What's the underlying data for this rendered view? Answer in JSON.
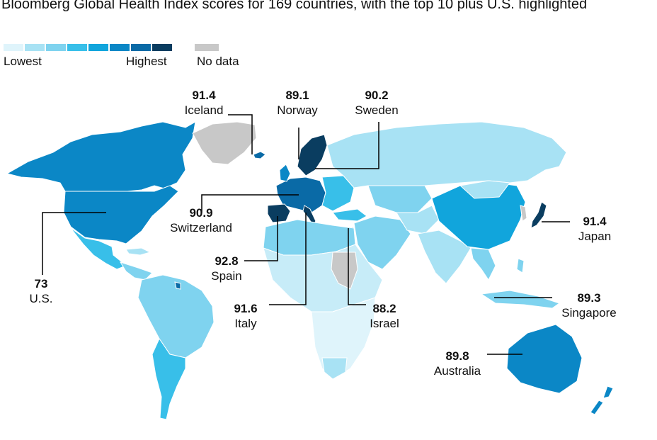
{
  "title": "Bloomberg Global Health Index scores for 169 countries, with the top 10 plus U.S. highlighted",
  "legend": {
    "colors": [
      "#dff4fb",
      "#c7ecf8",
      "#a8e2f4",
      "#7fd3ef",
      "#38bfe9",
      "#11a5dc",
      "#0b87c6",
      "#0a6aa6",
      "#0a3d60"
    ],
    "lowest_label": "Lowest",
    "highest_label": "Highest",
    "nodata_label": "No data",
    "nodata_color": "#c8c8c8"
  },
  "callouts": [
    {
      "id": "iceland",
      "value": "91.4",
      "name": "Iceland"
    },
    {
      "id": "norway",
      "value": "89.1",
      "name": "Norway"
    },
    {
      "id": "sweden",
      "value": "90.2",
      "name": "Sweden"
    },
    {
      "id": "switzerland",
      "value": "90.9",
      "name": "Switzerland"
    },
    {
      "id": "japan",
      "value": "91.4",
      "name": "Japan"
    },
    {
      "id": "us",
      "value": "73",
      "name": "U.S."
    },
    {
      "id": "spain",
      "value": "92.8",
      "name": "Spain"
    },
    {
      "id": "italy",
      "value": "91.6",
      "name": "Italy"
    },
    {
      "id": "israel",
      "value": "88.2",
      "name": "Israel"
    },
    {
      "id": "singapore",
      "value": "89.3",
      "name": "Singapore"
    },
    {
      "id": "australia",
      "value": "89.8",
      "name": "Australia"
    }
  ]
}
